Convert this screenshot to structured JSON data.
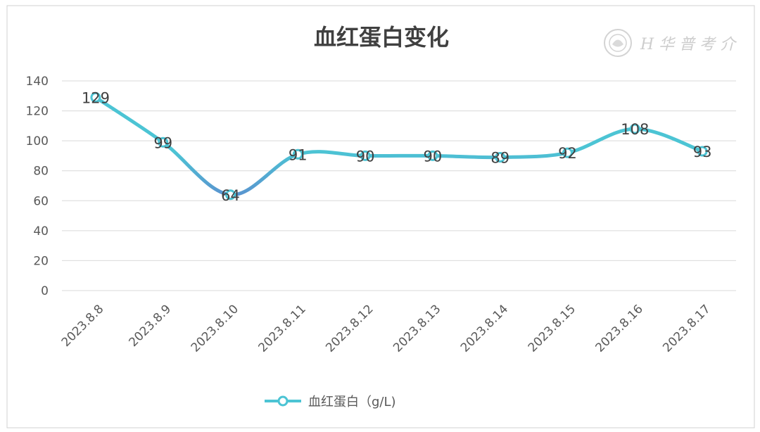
{
  "chart_data": {
    "type": "line",
    "title": "血红蛋白变化",
    "categories": [
      "2023.8.8",
      "2023.8.9",
      "2023.8.10",
      "2023.8.11",
      "2023.8.12",
      "2023.8.13",
      "2023.8.14",
      "2023.8.15",
      "2023.8.16",
      "2023.8.17"
    ],
    "series": [
      {
        "name": "血红蛋白（g/L)",
        "values": [
          129,
          99,
          64,
          91,
          90,
          90,
          89,
          92,
          108,
          93
        ],
        "color": "#4cc4d4"
      }
    ],
    "ylim": [
      0,
      140
    ],
    "yticks": [
      0,
      20,
      40,
      60,
      80,
      100,
      120,
      140
    ],
    "grid": true,
    "smooth": true,
    "data_labels": true,
    "legend_position": "bottom",
    "colors": {
      "line_main": "#4cc4d4",
      "line_dip": "#5b8fcf",
      "grid": "#d9d9d9",
      "text": "#595959"
    }
  },
  "watermark": {
    "text": "H 华 普 考 介",
    "icon": "emblem-icon"
  }
}
